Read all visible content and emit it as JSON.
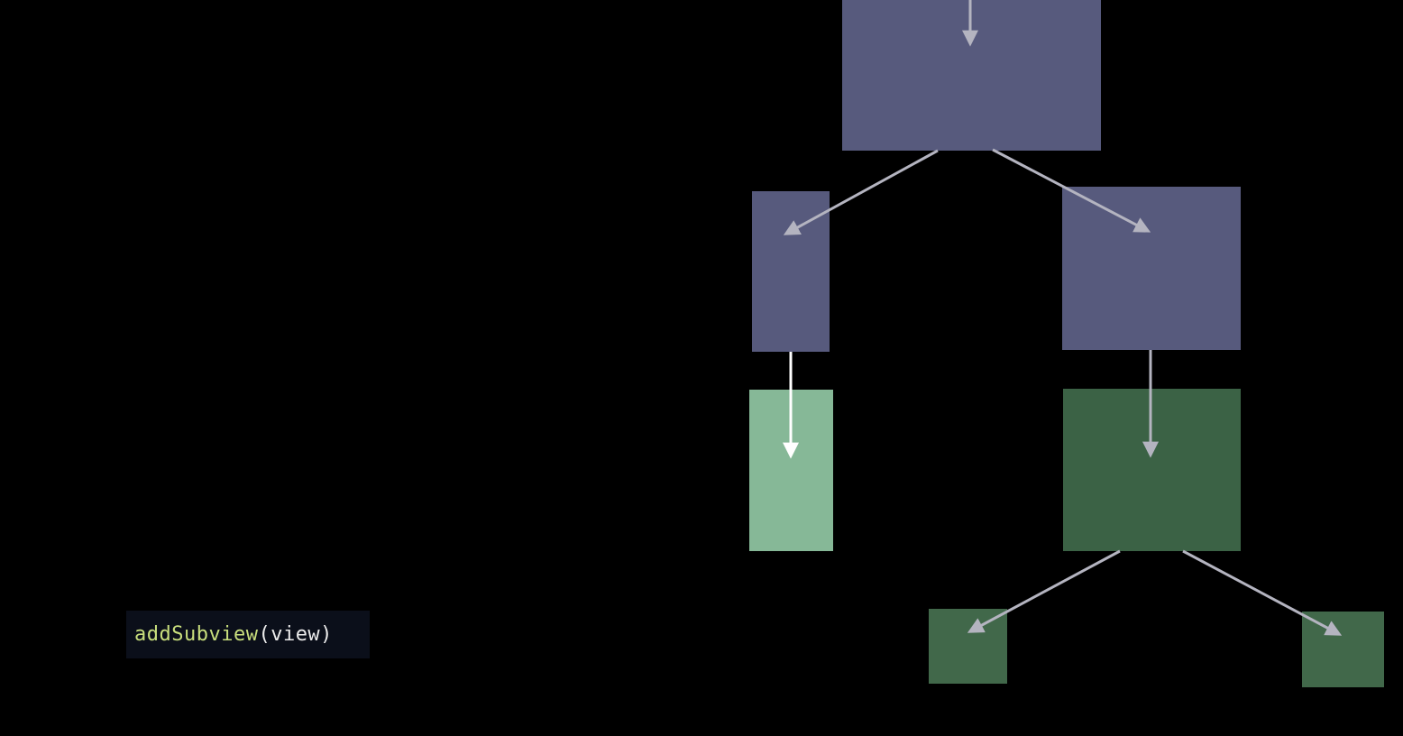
{
  "code": {
    "function_name": "addSubview",
    "arguments": "(view)"
  },
  "colors": {
    "background": "#000000",
    "parent_nodes": "#575a7d",
    "highlighted_child": "#86b897",
    "child_nodes": "#3b6245",
    "arrows_gray": "#b4b4c0",
    "arrows_white": "#ffffff",
    "code_function": "#c9df7d",
    "code_text": "#ececec"
  }
}
